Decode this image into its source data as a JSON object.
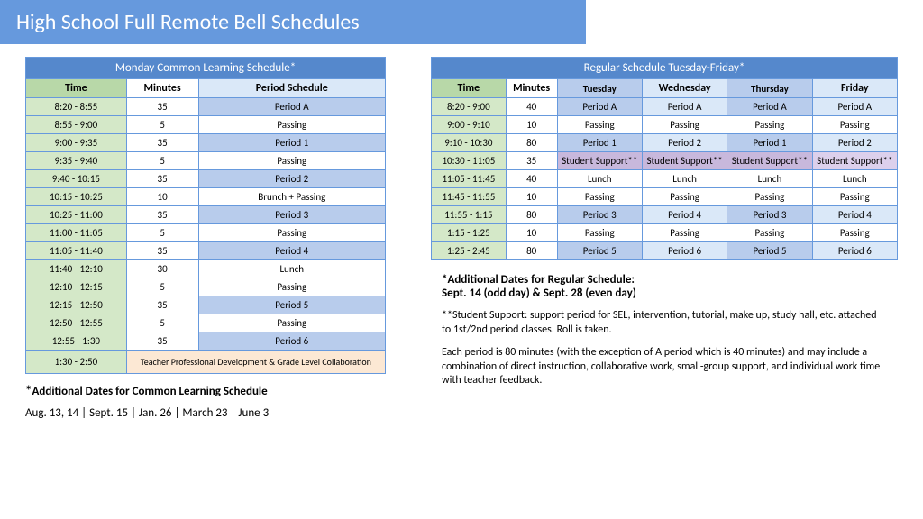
{
  "title": "High School Full Remote Bell Schedules",
  "left": {
    "tableTitle": "Monday Common Learning Schedule*",
    "headers": [
      "Time",
      "Minutes",
      "Period Schedule"
    ],
    "rows": [
      {
        "t": "8:20 - 8:55",
        "m": "35",
        "p": "Period A",
        "s": "d"
      },
      {
        "t": "8:55 - 9:00",
        "m": "5",
        "p": "Passing",
        "s": "w"
      },
      {
        "t": "9:00 - 9:35",
        "m": "35",
        "p": "Period 1",
        "s": "d"
      },
      {
        "t": "9:35 - 9:40",
        "m": "5",
        "p": "Passing",
        "s": "w"
      },
      {
        "t": "9:40 - 10:15",
        "m": "35",
        "p": "Period 2",
        "s": "d"
      },
      {
        "t": "10:15 - 10:25",
        "m": "10",
        "p": "Brunch + Passing",
        "s": "w"
      },
      {
        "t": "10:25 - 11:00",
        "m": "35",
        "p": "Period 3",
        "s": "d"
      },
      {
        "t": "11:00 - 11:05",
        "m": "5",
        "p": "Passing",
        "s": "w"
      },
      {
        "t": "11:05 - 11:40",
        "m": "35",
        "p": "Period 4",
        "s": "d"
      },
      {
        "t": "11:40 - 12:10",
        "m": "30",
        "p": "Lunch",
        "s": "w"
      },
      {
        "t": "12:10 - 12:15",
        "m": "5",
        "p": "Passing",
        "s": "w"
      },
      {
        "t": "12:15 - 12:50",
        "m": "35",
        "p": "Period 5",
        "s": "d"
      },
      {
        "t": "12:50 - 12:55",
        "m": "5",
        "p": "Passing",
        "s": "w"
      },
      {
        "t": "12:55 - 1:30",
        "m": "35",
        "p": "Period 6",
        "s": "d"
      }
    ],
    "lastRow": {
      "t": "1:30 - 2:50",
      "p": "Teacher Professional Development & Grade Level Collaboration"
    },
    "noteTitle": "*Additional Dates for Common Learning Schedule",
    "noteDates": "Aug. 13, 14 | Sept. 15 | Jan. 26 | March 23 | June 3"
  },
  "right": {
    "tableTitle": "Regular Schedule Tuesday-Friday*",
    "headers": [
      "Time",
      "Minutes",
      "Tuesday",
      "Wednesday",
      "Thursday",
      "Friday"
    ],
    "rows": [
      {
        "t": "8:20 - 9:00",
        "m": "40",
        "d": [
          "Period A",
          "Period A",
          "Period A",
          "Period A"
        ],
        "sty": [
          "d",
          "l",
          "d",
          "l"
        ]
      },
      {
        "t": "9:00 - 9:10",
        "m": "10",
        "d": [
          "Passing",
          "Passing",
          "Passing",
          "Passing"
        ],
        "sty": [
          "w",
          "w",
          "w",
          "w"
        ]
      },
      {
        "t": "9:10 - 10:30",
        "m": "80",
        "d": [
          "Period 1",
          "Period 2",
          "Period 1",
          "Period 2"
        ],
        "sty": [
          "d",
          "l",
          "d",
          "l"
        ]
      },
      {
        "t": "10:30 - 11:05",
        "m": "35",
        "d": [
          "Student Support**",
          "Student Support**",
          "Student Support**",
          "Student Support**"
        ],
        "sty": [
          "p",
          "p",
          "p",
          "v"
        ]
      },
      {
        "t": "11:05 - 11:45",
        "m": "40",
        "d": [
          "Lunch",
          "Lunch",
          "Lunch",
          "Lunch"
        ],
        "sty": [
          "w",
          "w",
          "w",
          "w"
        ]
      },
      {
        "t": "11:45 - 11:55",
        "m": "10",
        "d": [
          "Passing",
          "Passing",
          "Passing",
          "Passing"
        ],
        "sty": [
          "w",
          "w",
          "w",
          "w"
        ]
      },
      {
        "t": "11:55 - 1:15",
        "m": "80",
        "d": [
          "Period 3",
          "Period 4",
          "Period 3",
          "Period 4"
        ],
        "sty": [
          "d",
          "l",
          "d",
          "l"
        ]
      },
      {
        "t": "1:15 - 1:25",
        "m": "10",
        "d": [
          "Passing",
          "Passing",
          "Passing",
          "Passing"
        ],
        "sty": [
          "w",
          "w",
          "w",
          "w"
        ]
      },
      {
        "t": "1:25 - 2:45",
        "m": "80",
        "d": [
          "Period 5",
          "Period 6",
          "Period 5",
          "Period 6"
        ],
        "sty": [
          "d",
          "l",
          "d",
          "l"
        ]
      }
    ],
    "note1a": "*Additional Dates for Regular Schedule:",
    "note1b": "Sept. 14 (odd day) & Sept. 28 (even day)",
    "note2": "**Student Support: support period for SEL, intervention, tutorial, make up, study hall, etc. attached to 1st/2nd period classes. Roll is taken.",
    "note3": "Each period is 80 minutes (with the exception of A period which is 40 minutes) and may include a combination of direct instruction, collaborative work, small-group support, and individual work time with teacher feedback."
  }
}
